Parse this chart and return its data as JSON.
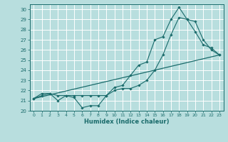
{
  "title": "",
  "xlabel": "Humidex (Indice chaleur)",
  "xlim": [
    -0.5,
    23.5
  ],
  "ylim": [
    20,
    30.5
  ],
  "yticks": [
    20,
    21,
    22,
    23,
    24,
    25,
    26,
    27,
    28,
    29,
    30
  ],
  "xticks": [
    0,
    1,
    2,
    3,
    4,
    5,
    6,
    7,
    8,
    9,
    10,
    11,
    12,
    13,
    14,
    15,
    16,
    17,
    18,
    19,
    20,
    21,
    22,
    23
  ],
  "background_color": "#b8dede",
  "grid_color": "#ffffff",
  "line_color": "#1a6b6b",
  "line1_x": [
    0,
    1,
    2,
    3,
    4,
    5,
    6,
    7,
    8,
    9,
    10,
    11,
    12,
    13,
    14,
    15,
    16,
    17,
    18,
    19,
    20,
    21,
    22,
    23
  ],
  "line1_y": [
    21.2,
    21.7,
    21.7,
    21.0,
    21.5,
    21.3,
    20.3,
    20.5,
    20.5,
    21.5,
    22.3,
    22.5,
    23.5,
    24.5,
    24.8,
    27.0,
    27.3,
    29.0,
    30.2,
    29.0,
    27.8,
    26.5,
    26.2,
    25.5
  ],
  "line2_x": [
    0,
    1,
    2,
    3,
    4,
    5,
    6,
    7,
    8,
    9,
    10,
    11,
    12,
    13,
    14,
    15,
    16,
    17,
    18,
    19,
    20,
    21,
    22,
    23
  ],
  "line2_y": [
    21.2,
    21.5,
    21.7,
    21.5,
    21.5,
    21.5,
    21.5,
    21.5,
    21.5,
    21.5,
    22.0,
    22.2,
    22.2,
    22.5,
    23.0,
    24.0,
    25.5,
    27.5,
    29.2,
    29.0,
    28.8,
    27.0,
    26.0,
    25.5
  ],
  "line3_x": [
    0,
    23
  ],
  "line3_y": [
    21.2,
    25.5
  ]
}
